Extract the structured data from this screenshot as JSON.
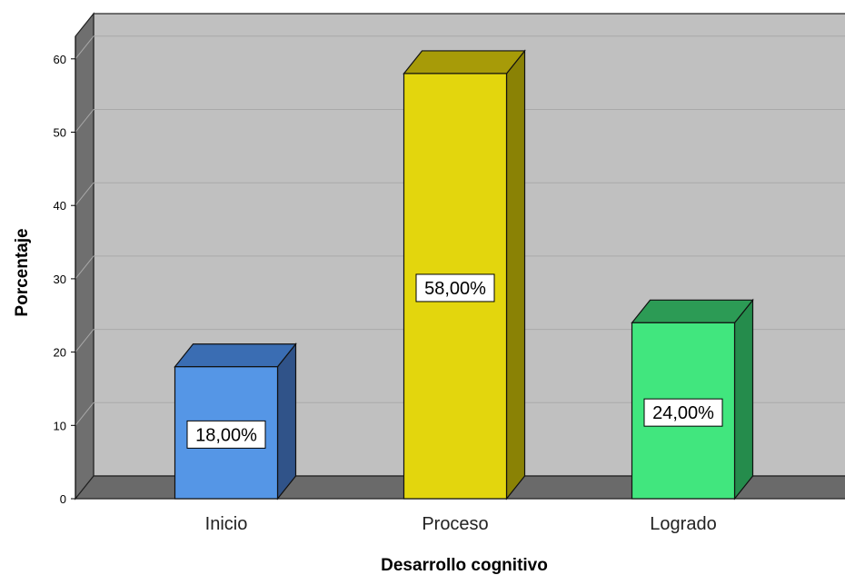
{
  "chart_data": {
    "type": "bar",
    "title": "",
    "xlabel": "Desarrollo cognitivo",
    "ylabel": "Porcentaje",
    "categories": [
      "Inicio",
      "Proceso",
      "Logrado"
    ],
    "values": [
      18,
      58,
      24
    ],
    "data_labels": [
      "18,00%",
      "58,00%",
      "24,00%"
    ],
    "ylim": [
      0,
      60
    ],
    "yticks": [
      0,
      10,
      20,
      30,
      40,
      50,
      60
    ],
    "grid": true,
    "style": "3d",
    "colors": {
      "bar_front": [
        "#5596e6",
        "#e3d60d",
        "#41e67e"
      ],
      "bar_side": [
        "#305389",
        "#8a8205",
        "#258c4c"
      ],
      "bar_top": [
        "#3a6db3",
        "#a79b08",
        "#2c9b55"
      ],
      "plot_back": "#c0c0c0",
      "plot_wall": "#6f6f6f",
      "plot_floor": "#6a6a6a",
      "gridline": "#a9a9a9"
    }
  }
}
